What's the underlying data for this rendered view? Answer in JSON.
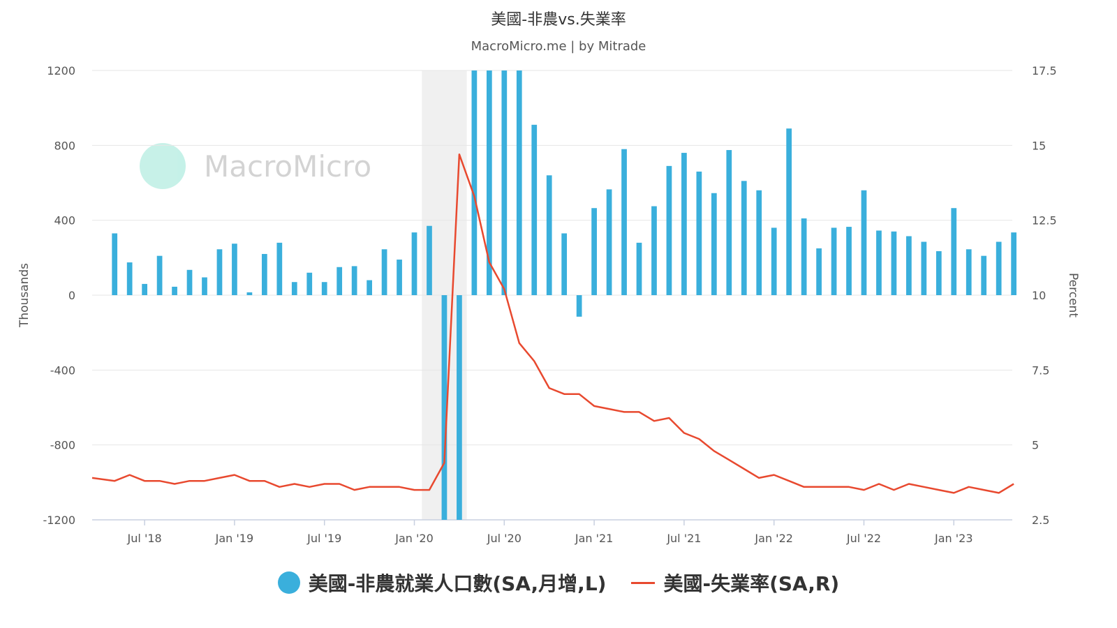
{
  "title": "美國-非農vs.失業率",
  "subtitle": "MacroMicro.me | by Mitrade",
  "watermark": "MacroMicro",
  "colors": {
    "bars": "#3aafdc",
    "line": "#e8492f",
    "shade": "#f0f0f0",
    "grid": "#e6e6e6"
  },
  "legend": {
    "bars_label": "美國-非農就業人口數(SA,月增,L)",
    "line_label": "美國-失業率(SA,R)"
  },
  "chart_data": {
    "type": "bar+line",
    "x_ticks": [
      "Jul '18",
      "Jan '19",
      "Jul '19",
      "Jan '20",
      "Jul '20",
      "Jan '21",
      "Jul '21",
      "Jan '22",
      "Jul '22",
      "Jan '23"
    ],
    "left_axis": {
      "label": "Thousands",
      "range": [
        -1200,
        1200
      ],
      "ticks": [
        "1200",
        "800",
        "400",
        "0",
        "-400",
        "-800",
        "-1200"
      ]
    },
    "right_axis": {
      "label": "Percent",
      "range": [
        2.5,
        17.5
      ],
      "ticks": [
        "17.5",
        "15",
        "12.5",
        "10",
        "7.5",
        "5",
        "2.5"
      ]
    },
    "shaded_period": {
      "start": "2020-02",
      "end": "2020-04"
    },
    "months": [
      "2018-04",
      "2018-05",
      "2018-06",
      "2018-07",
      "2018-08",
      "2018-09",
      "2018-10",
      "2018-11",
      "2018-12",
      "2019-01",
      "2019-02",
      "2019-03",
      "2019-04",
      "2019-05",
      "2019-06",
      "2019-07",
      "2019-08",
      "2019-09",
      "2019-10",
      "2019-11",
      "2019-12",
      "2020-01",
      "2020-02",
      "2020-03",
      "2020-04",
      "2020-05",
      "2020-06",
      "2020-07",
      "2020-08",
      "2020-09",
      "2020-10",
      "2020-11",
      "2020-12",
      "2021-01",
      "2021-02",
      "2021-03",
      "2021-04",
      "2021-05",
      "2021-06",
      "2021-07",
      "2021-08",
      "2021-09",
      "2021-10",
      "2021-11",
      "2021-12",
      "2022-01",
      "2022-02",
      "2022-03",
      "2022-04",
      "2022-05",
      "2022-06",
      "2022-07",
      "2022-08",
      "2022-09",
      "2022-10",
      "2022-11",
      "2022-12",
      "2023-01",
      "2023-02",
      "2023-03",
      "2023-04",
      "2023-05"
    ],
    "series": [
      {
        "name": "美國-非農就業人口數(SA,月增,L)",
        "type": "bar",
        "axis": "left",
        "start": "2018-05",
        "values": [
          330,
          175,
          60,
          210,
          45,
          135,
          95,
          245,
          275,
          15,
          220,
          280,
          70,
          120,
          70,
          150,
          155,
          80,
          245,
          190,
          335,
          370,
          -1200,
          -1200,
          1200,
          1200,
          1200,
          1200,
          910,
          640,
          330,
          -115,
          465,
          565,
          780,
          280,
          475,
          690,
          760,
          660,
          545,
          775,
          610,
          560,
          360,
          890,
          410,
          250,
          360,
          365,
          560,
          345,
          340,
          315,
          285,
          235,
          465,
          245,
          210,
          285,
          335
        ]
      },
      {
        "name": "美國-失業率(SA,R)",
        "type": "line",
        "axis": "right",
        "start": "2018-04",
        "values": [
          3.9,
          3.8,
          4.0,
          3.8,
          3.8,
          3.7,
          3.8,
          3.8,
          3.9,
          4.0,
          3.8,
          3.8,
          3.6,
          3.7,
          3.6,
          3.7,
          3.7,
          3.5,
          3.6,
          3.6,
          3.6,
          3.5,
          3.5,
          4.4,
          14.7,
          13.3,
          11.1,
          10.2,
          8.4,
          7.8,
          6.9,
          6.7,
          6.7,
          6.3,
          6.2,
          6.1,
          6.1,
          5.8,
          5.9,
          5.4,
          5.2,
          4.8,
          4.5,
          4.2,
          3.9,
          4.0,
          3.8,
          3.6,
          3.6,
          3.6,
          3.6,
          3.5,
          3.7,
          3.5,
          3.7,
          3.6,
          3.5,
          3.4,
          3.6,
          3.5,
          3.4,
          3.7
        ]
      }
    ]
  }
}
